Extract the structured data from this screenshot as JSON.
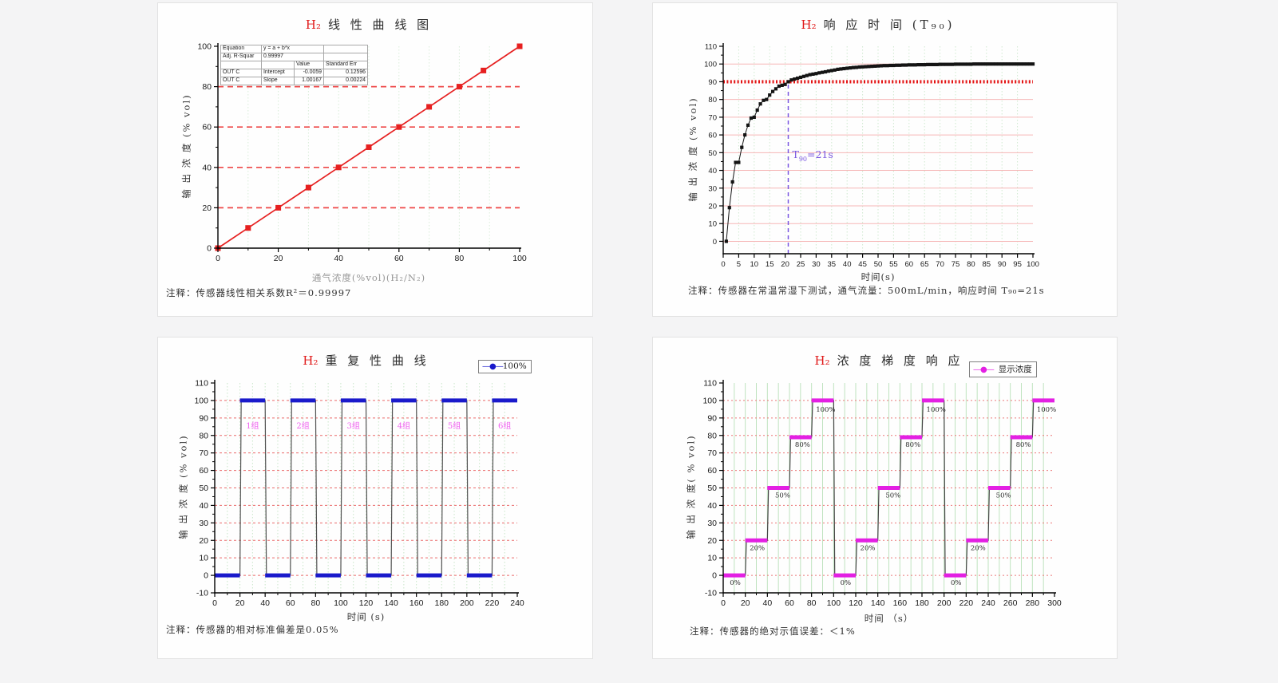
{
  "page": {
    "background": "#f4f4f5",
    "accent_red": "#e01818"
  },
  "chart_data": [
    {
      "type": "scatter-line",
      "title_h2": "H₂",
      "title_text": "线 性 曲 线 图",
      "xlabel": "通气浓度(%vol)(H₂/N₂)",
      "ylabel": "输 出 浓 度 (% vol)",
      "note": "注释：传感器线性相关系数R²＝0.99997",
      "xlim": [
        0,
        100
      ],
      "ylim": [
        0,
        100
      ],
      "xticks": [
        0,
        20,
        40,
        60,
        80,
        100
      ],
      "yticks": [
        0,
        20,
        40,
        60,
        80,
        100
      ],
      "minor_x": 10,
      "minor_y": 10,
      "grid": {
        "h": {
          "values": [
            20,
            40,
            60,
            80
          ],
          "color": "#ee4848",
          "dash": "7 5",
          "width": 1.7
        },
        "v": {
          "step": 10,
          "color": "#d9edd9",
          "dash": "1.5 2.5",
          "width": 1
        }
      },
      "series": [
        {
          "name": "OUT C",
          "color": "#e62020",
          "marker": "square",
          "marker_size": 7,
          "line_width": 1.7,
          "x": [
            0,
            10,
            20,
            30,
            40,
            50,
            60,
            70,
            80,
            88,
            100
          ],
          "y": [
            0,
            10,
            20,
            30,
            40,
            50,
            60,
            70,
            80,
            88,
            100
          ]
        }
      ],
      "fit_table": {
        "rows": [
          [
            "Equation",
            "y = a + b*x",
            "",
            ""
          ],
          [
            "Adj. R-Squar",
            "0.99997",
            "",
            ""
          ],
          [
            "",
            "",
            "Value",
            "Standard Err"
          ],
          [
            "OUT C",
            "Intercept",
            "-0.0059",
            "0.12596"
          ],
          [
            "OUT C",
            "Slope",
            "1.00167",
            "0.00224"
          ]
        ]
      }
    },
    {
      "type": "scatter-line",
      "title_h2": "H₂",
      "title_text": "响 应 时 间 (T₉₀)",
      "xlabel": "时间(s)",
      "ylabel": "输 出 浓 度 (% vol)",
      "note": "注释：传感器在常温常湿下测试，通气流量：500mL/min，响应时间 T₉₀=21s",
      "xlim": [
        0,
        100
      ],
      "ylim": [
        -7,
        110
      ],
      "xticks": [
        0,
        5,
        10,
        15,
        20,
        25,
        30,
        35,
        40,
        45,
        50,
        55,
        60,
        65,
        70,
        75,
        80,
        85,
        90,
        95,
        100
      ],
      "yticks": [
        0,
        10,
        20,
        30,
        40,
        50,
        60,
        70,
        80,
        90,
        100,
        110
      ],
      "minor_y": 5,
      "grid": {
        "h": {
          "values": [
            0,
            10,
            20,
            30,
            40,
            50,
            60,
            70,
            80,
            100
          ],
          "color": "#f6b6b6",
          "dash": "",
          "width": 1
        },
        "v": {
          "step": 5,
          "color": "#cfe9cf",
          "dash": "1.5 2.5",
          "width": 1
        }
      },
      "ref_line": {
        "y": 90,
        "color": "#e41414"
      },
      "marker_line": {
        "x": 21,
        "y_top": 90,
        "color": "#7a58e0",
        "label": "T",
        "sub": "90",
        "eq": "=21s",
        "label_y": 47
      },
      "series": [
        {
          "name": "response",
          "color": "#141414",
          "marker": "square",
          "marker_size": 4.2,
          "line_width": 1,
          "x_start": 1,
          "x_step": 1,
          "y": [
            0,
            19,
            33.5,
            44.5,
            44.5,
            53,
            60,
            65.5,
            69.5,
            70,
            74,
            77.5,
            79.5,
            80,
            82.5,
            84.5,
            86,
            87.5,
            88,
            88.5,
            90,
            91,
            91.5,
            92,
            92.5,
            93,
            93.5,
            94,
            94.3,
            94.6,
            95,
            95.3,
            95.6,
            96,
            96.3,
            96.6,
            97,
            97.2,
            97.4,
            97.6,
            97.8,
            98,
            98.1,
            98.3,
            98.4,
            98.5,
            98.6,
            98.7,
            98.8,
            98.9,
            99,
            99.1,
            99.1,
            99.2,
            99.2,
            99.3,
            99.3,
            99.4,
            99.4,
            99.5,
            99.5,
            99.5,
            99.6,
            99.6,
            99.6,
            99.7,
            99.7,
            99.7,
            99.7,
            99.8,
            99.8,
            99.8,
            99.8,
            99.8,
            99.9,
            99.9,
            99.9,
            99.9,
            99.9,
            99.9,
            100,
            100,
            100,
            100,
            100,
            100,
            100,
            100,
            100,
            100,
            100,
            100,
            100,
            100,
            100,
            100,
            100,
            100,
            100,
            100
          ]
        }
      ]
    },
    {
      "type": "step",
      "title_h2": "H₂",
      "title_text": "重 复 性 曲 线",
      "xlabel": "时间 (s)",
      "ylabel": "输 出 浓 度 (% vol)",
      "note": "注释：传感器的相对标准偏差是0.05%",
      "legend": {
        "symbol": "—●—",
        "label": "100%",
        "color": "#1a1acb"
      },
      "xlim": [
        0,
        240
      ],
      "ylim": [
        -10,
        110
      ],
      "xticks": [
        0,
        20,
        40,
        60,
        80,
        100,
        120,
        140,
        160,
        180,
        200,
        220,
        240
      ],
      "yticks": [
        -10,
        0,
        10,
        20,
        30,
        40,
        50,
        60,
        70,
        80,
        90,
        100,
        110
      ],
      "minor_x": 10,
      "minor_y": 5,
      "grid": {
        "h": {
          "values": [
            0,
            10,
            20,
            30,
            40,
            50,
            60,
            70,
            80,
            90,
            100
          ],
          "color": "#ea6a6a",
          "dash": "3 3",
          "width": 1
        },
        "v": {
          "step": 10,
          "color": "#c9e6c9",
          "dash": "1.5 2.5",
          "width": 1
        }
      },
      "segment_color": "#1a1acb",
      "connector_color": "#525252",
      "steps": [
        {
          "x0": 0,
          "x1": 20,
          "y": 0
        },
        {
          "x0": 20,
          "x1": 40,
          "y": 100
        },
        {
          "x0": 40,
          "x1": 60,
          "y": 0
        },
        {
          "x0": 60,
          "x1": 80,
          "y": 100
        },
        {
          "x0": 80,
          "x1": 100,
          "y": 0
        },
        {
          "x0": 100,
          "x1": 120,
          "y": 100
        },
        {
          "x0": 120,
          "x1": 140,
          "y": 0
        },
        {
          "x0": 140,
          "x1": 160,
          "y": 100
        },
        {
          "x0": 160,
          "x1": 180,
          "y": 0
        },
        {
          "x0": 180,
          "x1": 200,
          "y": 100
        },
        {
          "x0": 200,
          "x1": 220,
          "y": 0
        },
        {
          "x0": 220,
          "x1": 240,
          "y": 100
        }
      ],
      "labels": [
        {
          "text": "1组",
          "x": 30,
          "y": 84
        },
        {
          "text": "2组",
          "x": 70,
          "y": 84
        },
        {
          "text": "3组",
          "x": 110,
          "y": 84
        },
        {
          "text": "4组",
          "x": 150,
          "y": 84
        },
        {
          "text": "5组",
          "x": 190,
          "y": 84
        },
        {
          "text": "6组",
          "x": 230,
          "y": 84
        }
      ],
      "label_style": {
        "color": "#f060f0",
        "size": 10,
        "anchor": "middle"
      }
    },
    {
      "type": "step",
      "title_h2": "H₂",
      "title_text": "浓 度 梯 度 响 应",
      "xlabel": "时间 （s）",
      "ylabel": "输 出 浓 度( % vol)",
      "note": "注释：传感器的绝对示值误差：＜1%",
      "legend": {
        "symbol": "—●—",
        "label": "显示浓度",
        "color": "#e320e3"
      },
      "xlim": [
        0,
        300
      ],
      "ylim": [
        -10,
        110
      ],
      "xticks": [
        0,
        20,
        40,
        60,
        80,
        100,
        120,
        140,
        160,
        180,
        200,
        220,
        240,
        260,
        280,
        300
      ],
      "yticks": [
        -10,
        0,
        10,
        20,
        30,
        40,
        50,
        60,
        70,
        80,
        90,
        100,
        110
      ],
      "minor_x": 10,
      "minor_y": 5,
      "grid": {
        "h": {
          "values": [
            0,
            10,
            20,
            30,
            40,
            50,
            60,
            70,
            80,
            90,
            100
          ],
          "color": "#ec7878",
          "dash": "2 3",
          "width": 1
        },
        "v": {
          "step": 10,
          "color": "#bfe3bf",
          "dash": "",
          "width": 1
        }
      },
      "segment_color": "#e320e3",
      "connector_color": "#454545",
      "steps": [
        {
          "x0": 0,
          "x1": 20,
          "y": 0
        },
        {
          "x0": 20,
          "x1": 40,
          "y": 20
        },
        {
          "x0": 40,
          "x1": 60,
          "y": 50
        },
        {
          "x0": 60,
          "x1": 80,
          "y": 79
        },
        {
          "x0": 80,
          "x1": 100,
          "y": 100
        },
        {
          "x0": 100,
          "x1": 120,
          "y": 0
        },
        {
          "x0": 120,
          "x1": 140,
          "y": 20
        },
        {
          "x0": 140,
          "x1": 160,
          "y": 50
        },
        {
          "x0": 160,
          "x1": 180,
          "y": 79
        },
        {
          "x0": 180,
          "x1": 200,
          "y": 100
        },
        {
          "x0": 200,
          "x1": 220,
          "y": 0
        },
        {
          "x0": 220,
          "x1": 240,
          "y": 20
        },
        {
          "x0": 240,
          "x1": 260,
          "y": 50
        },
        {
          "x0": 260,
          "x1": 280,
          "y": 79
        },
        {
          "x0": 280,
          "x1": 300,
          "y": 100
        }
      ],
      "labels": [
        {
          "text": "0%",
          "x": 6,
          "y": -5.5
        },
        {
          "text": "20%",
          "x": 24,
          "y": 14.5
        },
        {
          "text": "50%",
          "x": 47,
          "y": 44.5
        },
        {
          "text": "80%",
          "x": 65,
          "y": 73.5
        },
        {
          "text": "100%",
          "x": 84,
          "y": 93.5
        },
        {
          "text": "0%",
          "x": 106,
          "y": -5.5
        },
        {
          "text": "20%",
          "x": 124,
          "y": 14.5
        },
        {
          "text": "50%",
          "x": 147,
          "y": 44.5
        },
        {
          "text": "80%",
          "x": 165,
          "y": 73.5
        },
        {
          "text": "100%",
          "x": 184,
          "y": 93.5
        },
        {
          "text": "0%",
          "x": 206,
          "y": -5.5
        },
        {
          "text": "20%",
          "x": 224,
          "y": 14.5
        },
        {
          "text": "50%",
          "x": 247,
          "y": 44.5
        },
        {
          "text": "80%",
          "x": 265,
          "y": 73.5
        },
        {
          "text": "100%",
          "x": 284,
          "y": 93.5
        }
      ],
      "label_style": {
        "color": "#2a2a2a",
        "size": 8.5,
        "anchor": "start"
      }
    }
  ]
}
